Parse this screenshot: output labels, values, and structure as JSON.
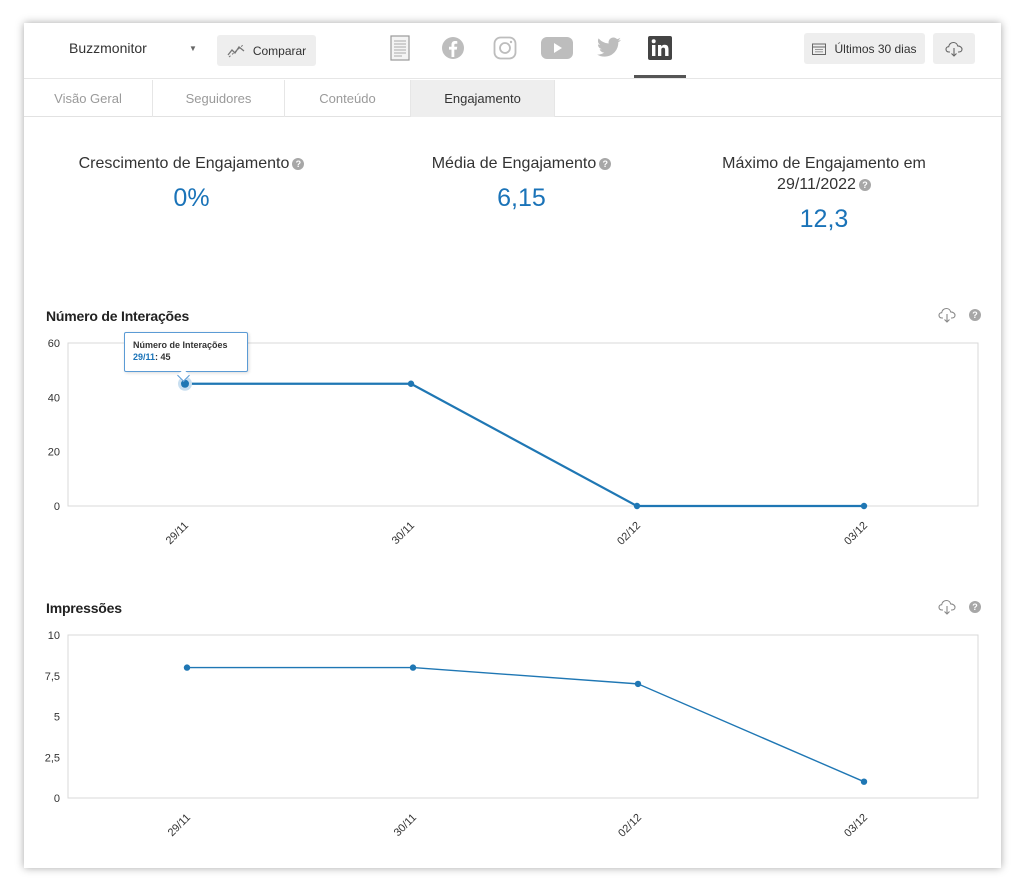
{
  "topbar": {
    "brand": "Buzzmonitor",
    "compare_label": "Comparar",
    "period_label": "Últimos 30 dias",
    "networks": [
      "report-icon",
      "facebook-icon",
      "instagram-icon",
      "youtube-icon",
      "twitter-icon",
      "linkedin-icon"
    ],
    "active_network": "linkedin-icon"
  },
  "tabs": [
    {
      "label": "Visão Geral",
      "active": false
    },
    {
      "label": "Seguidores",
      "active": false
    },
    {
      "label": "Conteúdo",
      "active": false
    },
    {
      "label": "Engajamento",
      "active": true
    }
  ],
  "kpis": {
    "growth": {
      "label": "Crescimento de Engajamento",
      "value": "0%"
    },
    "average": {
      "label": "Média de Engajamento",
      "value": "6,15"
    },
    "max": {
      "label_line1": "Máximo de Engajamento em",
      "label_line2": "29/11/2022",
      "value": "12,3"
    }
  },
  "colors": {
    "accent": "#1a73b8",
    "line": "#1f77b4",
    "help": "#a7a7a7"
  },
  "chart_data": [
    {
      "type": "line",
      "title": "Número de Interações",
      "categories": [
        "29/11",
        "30/11",
        "02/12",
        "03/12"
      ],
      "series": [
        {
          "name": "Número de Interações",
          "values": [
            45,
            45,
            0,
            0
          ]
        }
      ],
      "y_ticks": [
        "60",
        "40",
        "20",
        "0"
      ],
      "ylim": [
        0,
        60
      ],
      "tooltip": {
        "title": "Número de Interações",
        "date": "29/11",
        "value": "45"
      }
    },
    {
      "type": "line",
      "title": "Impressões",
      "categories": [
        "29/11",
        "30/11",
        "02/12",
        "03/12"
      ],
      "series": [
        {
          "values": [
            8,
            8,
            7,
            1
          ]
        }
      ],
      "y_ticks": [
        "10",
        "7,5",
        "5",
        "2,5",
        "0"
      ],
      "ylim": [
        0,
        10
      ]
    }
  ]
}
